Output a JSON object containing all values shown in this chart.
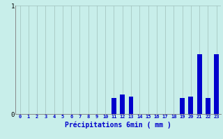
{
  "title": "",
  "xlabel": "Précipitations 6min ( mm )",
  "categories": [
    0,
    1,
    2,
    3,
    4,
    5,
    6,
    7,
    8,
    9,
    10,
    11,
    12,
    13,
    14,
    15,
    16,
    17,
    18,
    19,
    20,
    21,
    22,
    23
  ],
  "values": [
    0,
    0,
    0,
    0,
    0,
    0,
    0,
    0,
    0,
    0,
    0,
    0.15,
    0.18,
    0.16,
    0,
    0,
    0,
    0,
    0,
    0.15,
    0.16,
    0.55,
    0.15,
    0.55
  ],
  "bar_color": "#0000cc",
  "background_color": "#c8eeea",
  "grid_color": "#9fbfba",
  "text_color": "#0000cc",
  "ylim": [
    0,
    1.0
  ],
  "xlim": [
    -0.5,
    23.5
  ],
  "yticks": [
    0,
    1
  ],
  "bar_width": 0.55,
  "xlabel_fontsize": 7,
  "xtick_fontsize": 5,
  "ytick_fontsize": 6.5
}
